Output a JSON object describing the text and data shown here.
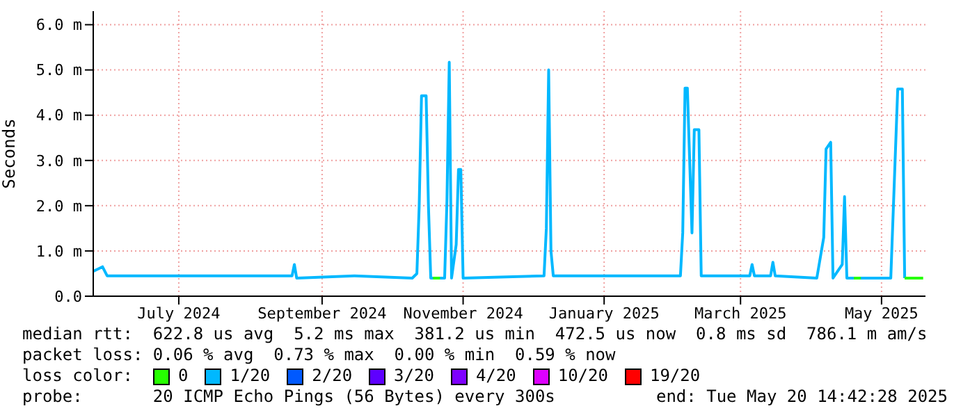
{
  "chart_data": {
    "type": "line",
    "ylabel": "Seconds",
    "xlim": [
      "2024-05-25",
      "2025-05-20"
    ],
    "xticks": [
      {
        "value": "2024-07-01",
        "label": "July 2024"
      },
      {
        "value": "2024-09-01",
        "label": "September 2024"
      },
      {
        "value": "2024-11-01",
        "label": "November 2024"
      },
      {
        "value": "2025-01-01",
        "label": "January 2025"
      },
      {
        "value": "2025-03-01",
        "label": "March 2025"
      },
      {
        "value": "2025-05-01",
        "label": "May 2025"
      }
    ],
    "ylim": [
      0,
      6.3
    ],
    "yticks": [
      {
        "value": 0,
        "label": "0.0"
      },
      {
        "value": 1,
        "label": "1.0 m"
      },
      {
        "value": 2,
        "label": "2.0 m"
      },
      {
        "value": 3,
        "label": "3.0 m"
      },
      {
        "value": 4,
        "label": "4.0 m"
      },
      {
        "value": 5,
        "label": "5.0 m"
      },
      {
        "value": 6,
        "label": "6.0 m"
      }
    ],
    "grid": true,
    "legend": "bottom",
    "legend_title": "loss color:",
    "marker": "none",
    "line_style": "solid",
    "series": [
      {
        "name": "0",
        "color": "#26ff00",
        "x": [
          "2024-10-19",
          "2024-10-22",
          "2024-10-23",
          "2025-04-19",
          "2025-04-22",
          "2025-04-23",
          "2025-05-11",
          "2025-05-19"
        ],
        "values": [
          0.4,
          0.4,
          null,
          0.4,
          0.4,
          null,
          0.4,
          0.4
        ]
      },
      {
        "name": "1/20",
        "color": "#00b8ff",
        "x": [
          "2024-05-25",
          "2024-05-27",
          "2024-05-29",
          "2024-05-31",
          "2024-06-30",
          "2024-08-19",
          "2024-08-20",
          "2024-08-21",
          "2024-09-15",
          "2024-10-10",
          "2024-10-12",
          "2024-10-13",
          "2024-10-14",
          "2024-10-16",
          "2024-10-17",
          "2024-10-18",
          "2024-10-24",
          "2024-10-25",
          "2024-10-26",
          "2024-10-27",
          "2024-10-29",
          "2024-10-30",
          "2024-10-31",
          "2024-11-01",
          "2024-12-06",
          "2024-12-07",
          "2024-12-08",
          "2024-12-09",
          "2024-12-10",
          "2025-02-03",
          "2025-02-04",
          "2025-02-05",
          "2025-02-06",
          "2025-02-07",
          "2025-02-08",
          "2025-02-09",
          "2025-02-11",
          "2025-02-12",
          "2025-03-05",
          "2025-03-06",
          "2025-03-07",
          "2025-03-14",
          "2025-03-15",
          "2025-03-16",
          "2025-04-03",
          "2025-04-06",
          "2025-04-07",
          "2025-04-09",
          "2025-04-10",
          "2025-04-14",
          "2025-04-15",
          "2025-04-16",
          "2025-05-05",
          "2025-05-08",
          "2025-05-10",
          "2025-05-11"
        ],
        "values": [
          0.55,
          0.6,
          0.65,
          0.45,
          0.45,
          0.45,
          0.7,
          0.4,
          0.45,
          0.4,
          0.5,
          2.0,
          4.43,
          4.43,
          2.0,
          0.4,
          0.4,
          2.1,
          5.17,
          0.4,
          1.14,
          2.8,
          2.8,
          0.4,
          0.45,
          1.5,
          5.0,
          1.0,
          0.45,
          0.45,
          1.4,
          4.6,
          4.6,
          3.0,
          1.4,
          3.68,
          3.68,
          0.45,
          0.45,
          0.7,
          0.45,
          0.45,
          0.75,
          0.45,
          0.4,
          1.3,
          3.25,
          3.4,
          0.4,
          0.7,
          2.2,
          0.4,
          0.4,
          4.58,
          4.58,
          0.4
        ]
      },
      {
        "name": "2/20",
        "color": "#0059ff"
      },
      {
        "name": "3/20",
        "color": "#5e00ff"
      },
      {
        "name": "4/20",
        "color": "#7e00ff"
      },
      {
        "name": "10/20",
        "color": "#dd00ff"
      },
      {
        "name": "19/20",
        "color": "#ff0000"
      }
    ],
    "annotations": [
      "median rtt:  622.8 us avg  5.2 ms max  381.2 us min  472.5 us now  0.8 ms sd  786.1 m am/s",
      "packet loss: 0.06 % avg  0.73 % max  0.00 % min  0.59 % now",
      "probe:       20 ICMP Echo Pings (56 Bytes) every 300s",
      "end: Tue May 20 14:42:28 2025"
    ]
  }
}
